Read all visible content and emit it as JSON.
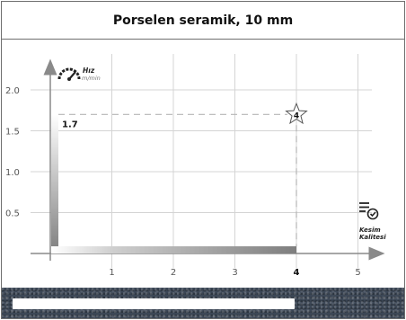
{
  "header": {
    "title": "Porselen seramik, 10 mm"
  },
  "chart_data": {
    "type": "bar",
    "xlabel": "Kesim Kalitesi",
    "ylabel": "Hız",
    "yunit": "m/min",
    "x_ticks": [
      "1",
      "2",
      "3",
      "4",
      "5"
    ],
    "y_ticks": [
      "0.5",
      "1.0",
      "1.5",
      "2.0"
    ],
    "xlim": [
      0,
      5.2
    ],
    "ylim": [
      0,
      2.1
    ],
    "grid": true,
    "point": {
      "x": 4,
      "y": 1.7,
      "y_label": "1.7",
      "star_label": "4"
    },
    "highlight_tick": "4"
  },
  "icons": {
    "speed": "speedometer-icon",
    "quality": "checklist-icon",
    "star": "star-icon"
  },
  "colors": {
    "accent_text": "#111111",
    "axis": "#8a8a8a",
    "grid": "#d4d4d4"
  }
}
